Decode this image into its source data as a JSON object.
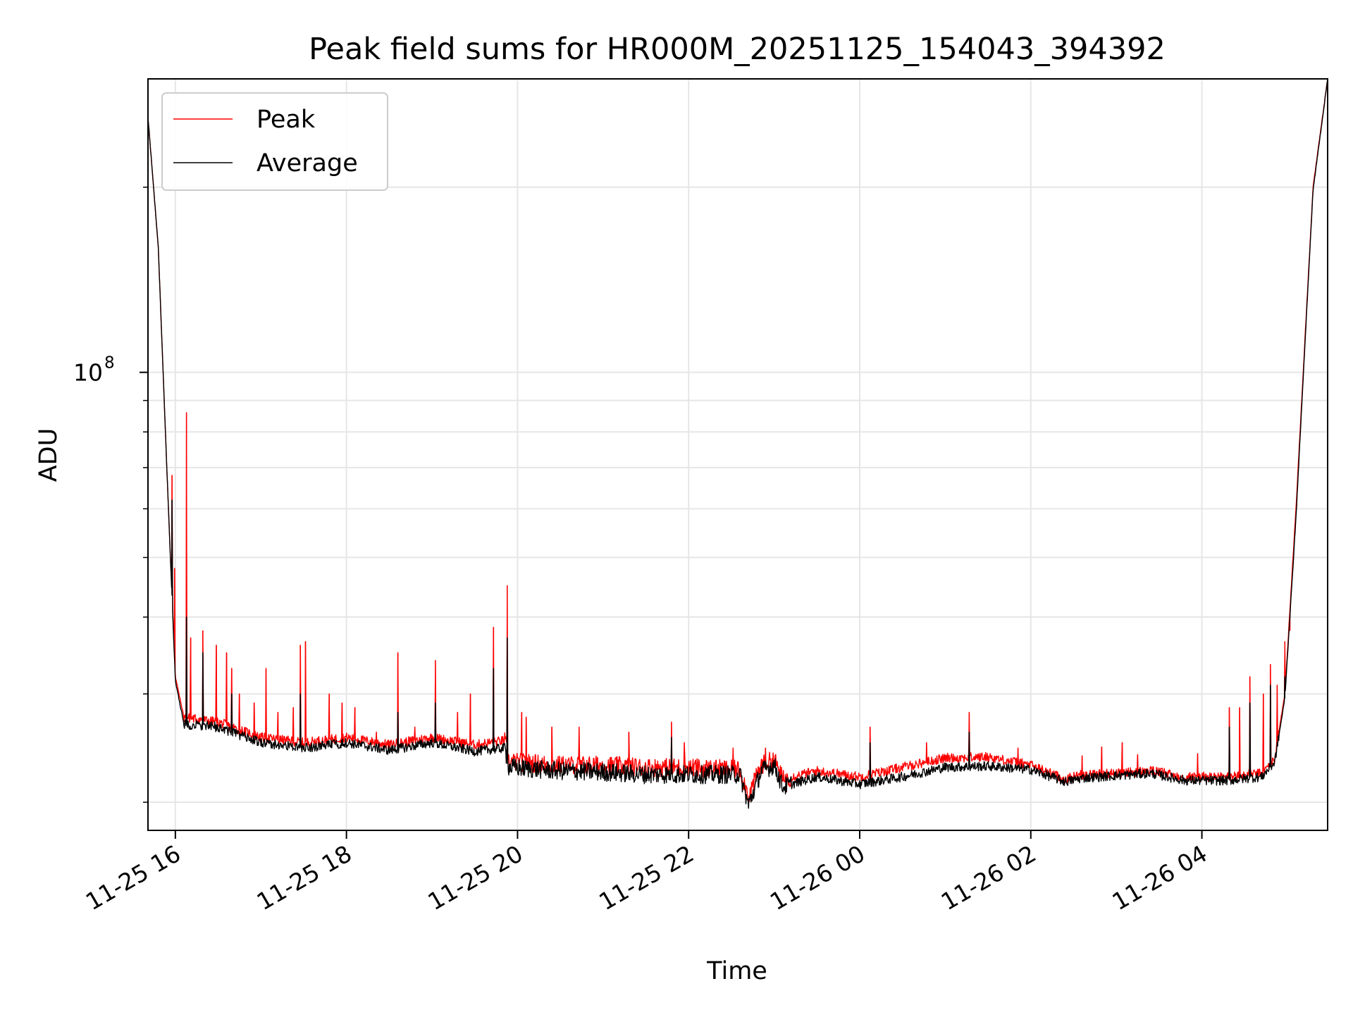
{
  "chart_data": {
    "type": "line",
    "title": "Peak field sums for HR000M_20251125_154043_394392",
    "xlabel": "Time",
    "ylabel": "ADU",
    "yscale": "log",
    "grid": true,
    "legend_position": "top-left",
    "x_unit": "hours since 11-25 00:00",
    "xlim": [
      15.68,
      29.47
    ],
    "ylim": [
      18000000,
      300000000
    ],
    "x_ticks": [
      {
        "value": 16,
        "label": "11-25 16"
      },
      {
        "value": 18,
        "label": "11-25 18"
      },
      {
        "value": 20,
        "label": "11-25 20"
      },
      {
        "value": 22,
        "label": "11-25 22"
      },
      {
        "value": 24,
        "label": "11-26 00"
      },
      {
        "value": 26,
        "label": "11-26 02"
      },
      {
        "value": 28,
        "label": "11-26 04"
      }
    ],
    "y_major_ticks": [
      {
        "value": 100000000,
        "base": "10",
        "exponent": "8"
      }
    ],
    "y_minor_ticks": [
      20000000,
      30000000,
      40000000,
      50000000,
      60000000,
      70000000,
      80000000,
      90000000,
      200000000
    ],
    "series": [
      {
        "name": "Peak",
        "color": "#ff0000",
        "baseline": [
          [
            15.68,
            260000000
          ],
          [
            15.8,
            160000000
          ],
          [
            15.9,
            70000000
          ],
          [
            16.0,
            32000000
          ],
          [
            16.1,
            27500000
          ],
          [
            16.5,
            27000000
          ],
          [
            17.0,
            25500000
          ],
          [
            17.5,
            25000000
          ],
          [
            18.0,
            25500000
          ],
          [
            18.5,
            24800000
          ],
          [
            19.0,
            25500000
          ],
          [
            19.5,
            24800000
          ],
          [
            19.85,
            25200000
          ],
          [
            19.9,
            23300000
          ],
          [
            20.5,
            23000000
          ],
          [
            21.0,
            23000000
          ],
          [
            21.5,
            22800000
          ],
          [
            22.0,
            22800000
          ],
          [
            22.6,
            22600000
          ],
          [
            22.7,
            20500000
          ],
          [
            22.85,
            23000000
          ],
          [
            23.0,
            23500000
          ],
          [
            23.1,
            21800000
          ],
          [
            23.5,
            22500000
          ],
          [
            24.0,
            22000000
          ],
          [
            24.5,
            22800000
          ],
          [
            25.0,
            23600000
          ],
          [
            25.5,
            23700000
          ],
          [
            26.0,
            23000000
          ],
          [
            26.4,
            21800000
          ],
          [
            26.6,
            22200000
          ],
          [
            27.0,
            22300000
          ],
          [
            27.4,
            22500000
          ],
          [
            27.8,
            22000000
          ],
          [
            28.3,
            22000000
          ],
          [
            28.7,
            22300000
          ],
          [
            28.85,
            23500000
          ],
          [
            28.97,
            30000000
          ],
          [
            29.1,
            60000000
          ],
          [
            29.2,
            110000000
          ],
          [
            29.3,
            200000000
          ],
          [
            29.47,
            300000000
          ]
        ],
        "spikes": [
          [
            15.96,
            68000000
          ],
          [
            15.99,
            48000000
          ],
          [
            16.13,
            86000000
          ],
          [
            16.18,
            37000000
          ],
          [
            16.32,
            38000000
          ],
          [
            16.48,
            36000000
          ],
          [
            16.6,
            35000000
          ],
          [
            16.66,
            33000000
          ],
          [
            16.75,
            30000000
          ],
          [
            16.92,
            29000000
          ],
          [
            17.06,
            33000000
          ],
          [
            17.2,
            28000000
          ],
          [
            17.38,
            28500000
          ],
          [
            17.46,
            36000000
          ],
          [
            17.52,
            36500000
          ],
          [
            17.8,
            30000000
          ],
          [
            17.95,
            29000000
          ],
          [
            18.1,
            28500000
          ],
          [
            18.35,
            26000000
          ],
          [
            18.6,
            35000000
          ],
          [
            18.8,
            26500000
          ],
          [
            19.04,
            34000000
          ],
          [
            19.3,
            28000000
          ],
          [
            19.45,
            30000000
          ],
          [
            19.72,
            38500000
          ],
          [
            19.88,
            45000000
          ],
          [
            20.05,
            28000000
          ],
          [
            20.1,
            27500000
          ],
          [
            20.4,
            26500000
          ],
          [
            20.72,
            26500000
          ],
          [
            21.3,
            26000000
          ],
          [
            21.8,
            27000000
          ],
          [
            21.95,
            25000000
          ],
          [
            22.52,
            24500000
          ],
          [
            22.9,
            24500000
          ],
          [
            24.12,
            26500000
          ],
          [
            24.78,
            25000000
          ],
          [
            25.28,
            28000000
          ],
          [
            25.85,
            24500000
          ],
          [
            26.6,
            23800000
          ],
          [
            26.83,
            24600000
          ],
          [
            27.07,
            25000000
          ],
          [
            27.25,
            23900000
          ],
          [
            27.95,
            24000000
          ],
          [
            28.32,
            28500000
          ],
          [
            28.44,
            28500000
          ],
          [
            28.56,
            32000000
          ],
          [
            28.72,
            30000000
          ],
          [
            28.8,
            33500000
          ],
          [
            28.88,
            31000000
          ],
          [
            28.97,
            36500000
          ],
          [
            29.03,
            38000000
          ]
        ]
      },
      {
        "name": "Average",
        "color": "#000000",
        "baseline": [
          [
            15.68,
            260000000
          ],
          [
            15.8,
            160000000
          ],
          [
            15.9,
            70000000
          ],
          [
            16.0,
            31500000
          ],
          [
            16.1,
            26800000
          ],
          [
            16.5,
            26500000
          ],
          [
            17.0,
            25000000
          ],
          [
            17.5,
            24500000
          ],
          [
            18.0,
            25000000
          ],
          [
            18.5,
            24300000
          ],
          [
            19.0,
            25000000
          ],
          [
            19.5,
            24200000
          ],
          [
            19.85,
            24500000
          ],
          [
            19.9,
            22800000
          ],
          [
            20.5,
            22500000
          ],
          [
            21.0,
            22400000
          ],
          [
            21.5,
            22200000
          ],
          [
            22.0,
            22200000
          ],
          [
            22.6,
            22200000
          ],
          [
            22.7,
            19800000
          ],
          [
            22.85,
            22500000
          ],
          [
            23.0,
            23000000
          ],
          [
            23.1,
            21200000
          ],
          [
            23.5,
            22000000
          ],
          [
            24.0,
            21400000
          ],
          [
            24.5,
            22000000
          ],
          [
            25.0,
            22800000
          ],
          [
            25.5,
            22900000
          ],
          [
            26.0,
            22600000
          ],
          [
            26.4,
            21600000
          ],
          [
            26.6,
            21900000
          ],
          [
            27.0,
            22100000
          ],
          [
            27.4,
            22300000
          ],
          [
            27.8,
            21700000
          ],
          [
            28.3,
            21700000
          ],
          [
            28.7,
            22000000
          ],
          [
            28.85,
            23200000
          ],
          [
            28.97,
            29500000
          ],
          [
            29.1,
            58000000
          ],
          [
            29.2,
            108000000
          ],
          [
            29.3,
            198000000
          ],
          [
            29.47,
            300000000
          ]
        ],
        "spikes": [
          [
            15.96,
            62000000
          ],
          [
            16.13,
            40000000
          ],
          [
            16.32,
            35000000
          ],
          [
            16.66,
            30000000
          ],
          [
            17.46,
            30000000
          ],
          [
            18.6,
            28000000
          ],
          [
            19.04,
            29000000
          ],
          [
            19.72,
            33000000
          ],
          [
            19.88,
            37000000
          ],
          [
            21.8,
            25500000
          ],
          [
            24.12,
            25000000
          ],
          [
            25.28,
            26000000
          ],
          [
            28.32,
            26500000
          ],
          [
            28.56,
            29000000
          ],
          [
            28.8,
            31000000
          ],
          [
            28.97,
            32000000
          ]
        ]
      }
    ]
  }
}
